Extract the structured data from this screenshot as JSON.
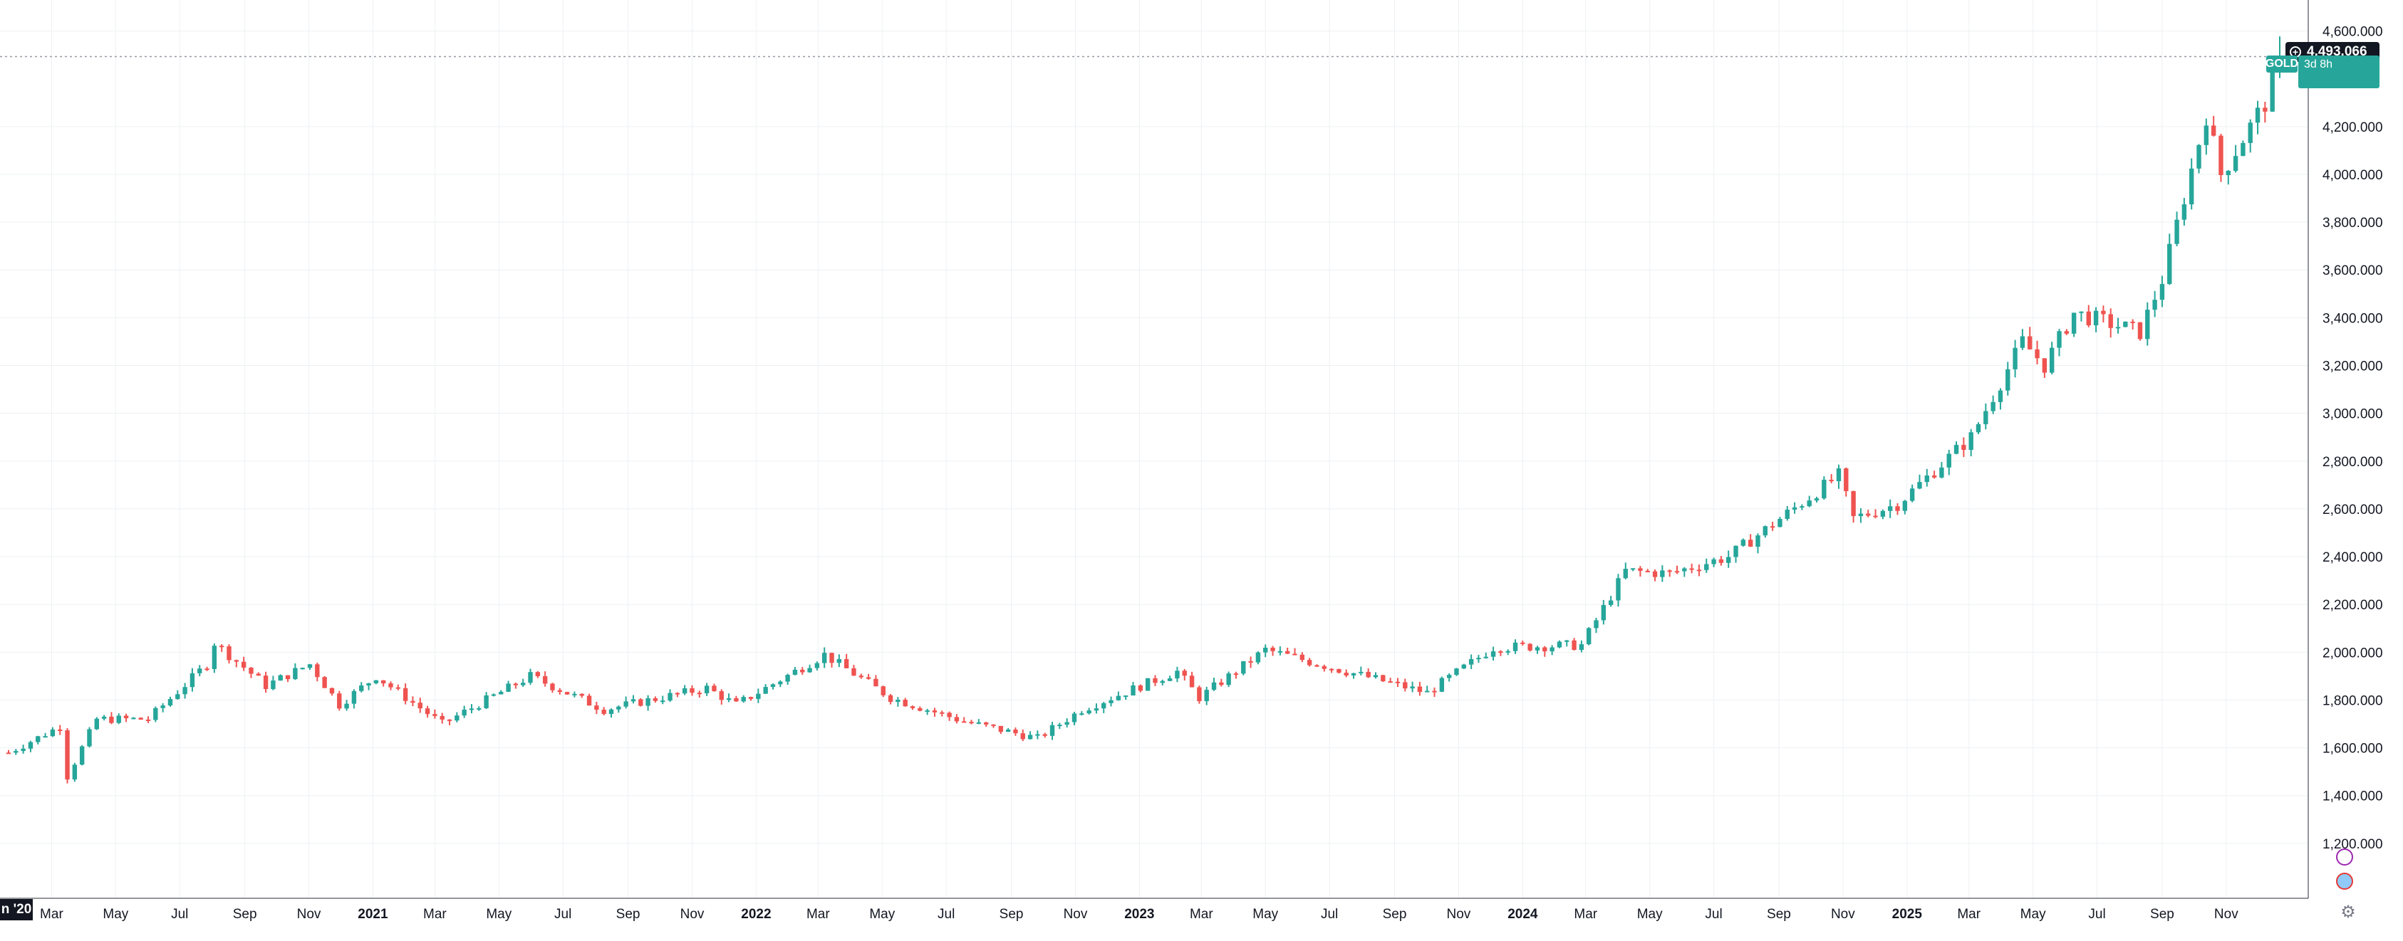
{
  "chart_data": {
    "type": "candlestick",
    "title": "",
    "interval": "weekly",
    "colors": {
      "up": "#26a69a",
      "down": "#ef5350",
      "grid": "#eef0f3",
      "axis_text": "#131722",
      "last_price_line": "#9598a1"
    },
    "ylim": [
      1000,
      4700
    ],
    "y_ticks": [
      "1,200.000",
      "1,400.000",
      "1,600.000",
      "1,800.000",
      "2,000.000",
      "2,200.000",
      "2,400.000",
      "2,600.000",
      "2,800.000",
      "3,000.000",
      "3,200.000",
      "3,400.000",
      "3,600.000",
      "3,800.000",
      "4,000.000",
      "4,200.000",
      "4,600.000"
    ],
    "y_tick_values": [
      1200,
      1400,
      1600,
      1800,
      2000,
      2200,
      2400,
      2600,
      2800,
      3000,
      3200,
      3400,
      3600,
      3800,
      4000,
      4200,
      4600
    ],
    "x_ticks": [
      {
        "label": "Mar",
        "date": "2020-03-01"
      },
      {
        "label": "May",
        "date": "2020-05-01"
      },
      {
        "label": "Jul",
        "date": "2020-07-01"
      },
      {
        "label": "Sep",
        "date": "2020-09-01"
      },
      {
        "label": "Nov",
        "date": "2020-11-01"
      },
      {
        "label": "2021",
        "date": "2021-01-01"
      },
      {
        "label": "Mar",
        "date": "2021-03-01"
      },
      {
        "label": "May",
        "date": "2021-05-01"
      },
      {
        "label": "Jul",
        "date": "2021-07-01"
      },
      {
        "label": "Sep",
        "date": "2021-09-01"
      },
      {
        "label": "Nov",
        "date": "2021-11-01"
      },
      {
        "label": "2022",
        "date": "2022-01-01"
      },
      {
        "label": "Mar",
        "date": "2022-03-01"
      },
      {
        "label": "May",
        "date": "2022-05-01"
      },
      {
        "label": "Jul",
        "date": "2022-07-01"
      },
      {
        "label": "Sep",
        "date": "2022-09-01"
      },
      {
        "label": "Nov",
        "date": "2022-11-01"
      },
      {
        "label": "2023",
        "date": "2023-01-01"
      },
      {
        "label": "Mar",
        "date": "2023-03-01"
      },
      {
        "label": "May",
        "date": "2023-05-01"
      },
      {
        "label": "Jul",
        "date": "2023-07-01"
      },
      {
        "label": "Sep",
        "date": "2023-09-01"
      },
      {
        "label": "Nov",
        "date": "2023-11-01"
      },
      {
        "label": "2024",
        "date": "2024-01-01"
      },
      {
        "label": "Mar",
        "date": "2024-03-01"
      },
      {
        "label": "May",
        "date": "2024-05-01"
      },
      {
        "label": "Jul",
        "date": "2024-07-01"
      },
      {
        "label": "Sep",
        "date": "2024-09-01"
      },
      {
        "label": "Nov",
        "date": "2024-11-01"
      },
      {
        "label": "2025",
        "date": "2025-01-01"
      },
      {
        "label": "Mar",
        "date": "2025-03-01"
      },
      {
        "label": "May",
        "date": "2025-05-01"
      },
      {
        "label": "Jul",
        "date": "2025-07-01"
      },
      {
        "label": "Sep",
        "date": "2025-09-01"
      },
      {
        "label": "Nov",
        "date": "2025-11-01"
      }
    ],
    "x_range": [
      "2020-01-20",
      "2025-12-22"
    ],
    "last_price": 4493.066,
    "last_price_label": "4,493.066",
    "symbol_label": "GOLD",
    "close_tag_line1": "",
    "countdown_label": "3d 8h",
    "crosshair_date_label": "n '20",
    "grid": true,
    "key_points": [
      {
        "date": "2020-01-20",
        "close": 1580
      },
      {
        "date": "2020-03-09",
        "close": 1690
      },
      {
        "date": "2020-03-16",
        "close": 1480
      },
      {
        "date": "2020-04-13",
        "close": 1720
      },
      {
        "date": "2020-06-01",
        "close": 1720
      },
      {
        "date": "2020-07-27",
        "close": 1950
      },
      {
        "date": "2020-08-03",
        "close": 2040
      },
      {
        "date": "2020-09-21",
        "close": 1860
      },
      {
        "date": "2020-11-02",
        "close": 1950
      },
      {
        "date": "2020-11-30",
        "close": 1780
      },
      {
        "date": "2021-01-04",
        "close": 1900
      },
      {
        "date": "2021-03-08",
        "close": 1700
      },
      {
        "date": "2021-05-31",
        "close": 1900
      },
      {
        "date": "2021-08-09",
        "close": 1760
      },
      {
        "date": "2021-11-15",
        "close": 1850
      },
      {
        "date": "2021-12-13",
        "close": 1780
      },
      {
        "date": "2022-03-07",
        "close": 1990
      },
      {
        "date": "2022-05-09",
        "close": 1810
      },
      {
        "date": "2022-07-18",
        "close": 1710
      },
      {
        "date": "2022-09-26",
        "close": 1640
      },
      {
        "date": "2022-11-07",
        "close": 1760
      },
      {
        "date": "2023-02-06",
        "close": 1920
      },
      {
        "date": "2023-02-27",
        "close": 1810
      },
      {
        "date": "2023-05-01",
        "close": 2010
      },
      {
        "date": "2023-10-02",
        "close": 1830
      },
      {
        "date": "2023-12-04",
        "close": 2020
      },
      {
        "date": "2024-02-26",
        "close": 2030
      },
      {
        "date": "2024-04-08",
        "close": 2340
      },
      {
        "date": "2024-05-20",
        "close": 2330
      },
      {
        "date": "2024-07-15",
        "close": 2400
      },
      {
        "date": "2024-10-28",
        "close": 2740
      },
      {
        "date": "2024-11-11",
        "close": 2560
      },
      {
        "date": "2024-12-23",
        "close": 2620
      },
      {
        "date": "2025-03-03",
        "close": 2900
      },
      {
        "date": "2025-04-21",
        "close": 3300
      },
      {
        "date": "2025-05-12",
        "close": 3200
      },
      {
        "date": "2025-06-09",
        "close": 3420
      },
      {
        "date": "2025-08-11",
        "close": 3340
      },
      {
        "date": "2025-09-01",
        "close": 3560
      },
      {
        "date": "2025-10-13",
        "close": 4250
      },
      {
        "date": "2025-10-27",
        "close": 4000
      },
      {
        "date": "2025-12-08",
        "close": 4300
      },
      {
        "date": "2025-12-22",
        "close": 4493
      }
    ]
  }
}
